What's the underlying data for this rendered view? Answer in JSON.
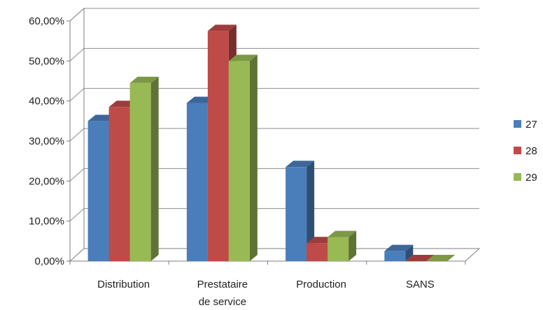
{
  "chart_data": {
    "type": "bar",
    "categories": [
      "Distribution",
      "Prestataire\nde service",
      "Production",
      "SANS"
    ],
    "series": [
      {
        "name": "27",
        "values": [
          0.35,
          0.395,
          0.235,
          0.025
        ],
        "color": "#4a7ebb"
      },
      {
        "name": "28",
        "values": [
          0.385,
          0.575,
          0.045,
          0.0
        ],
        "color": "#be4b48"
      },
      {
        "name": "29",
        "values": [
          0.445,
          0.5,
          0.06,
          0.0
        ],
        "color": "#98b954"
      }
    ],
    "yticks": [
      "0,00%",
      "10,00%",
      "20,00%",
      "30,00%",
      "40,00%",
      "50,00%",
      "60,00%"
    ],
    "ylim": [
      0,
      0.6
    ],
    "grid": true,
    "legend": "right",
    "three_d": true
  }
}
